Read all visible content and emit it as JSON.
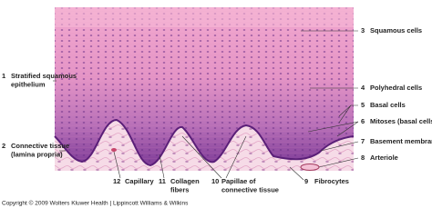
{
  "labels": [
    {
      "number": "1",
      "lines": [
        "Stratified squamous",
        "epithelium"
      ]
    },
    {
      "number": "2",
      "lines": [
        "Connective tissue",
        "(lamina propria)"
      ]
    },
    {
      "number": "3",
      "lines": [
        "Squamous cells"
      ]
    },
    {
      "number": "4",
      "lines": [
        "Polyhedral cells"
      ]
    },
    {
      "number": "5",
      "lines": [
        "Basal cells"
      ]
    },
    {
      "number": "6",
      "lines": [
        "Mitoses (basal cells)"
      ]
    },
    {
      "number": "7",
      "lines": [
        "Basement membrane"
      ]
    },
    {
      "number": "8",
      "lines": [
        "Arteriole"
      ]
    },
    {
      "number": "9",
      "lines": [
        "Fibrocytes"
      ]
    },
    {
      "number": "10",
      "lines": [
        "Papillae of",
        "connective tissue"
      ]
    },
    {
      "number": "11",
      "lines": [
        "Collagen",
        "fibers"
      ]
    },
    {
      "number": "12",
      "lines": [
        "Capillary"
      ]
    }
  ],
  "footer": "Copyright © 2009 Wolters Kluwer Health | Lippincott Williams & Wilkins"
}
